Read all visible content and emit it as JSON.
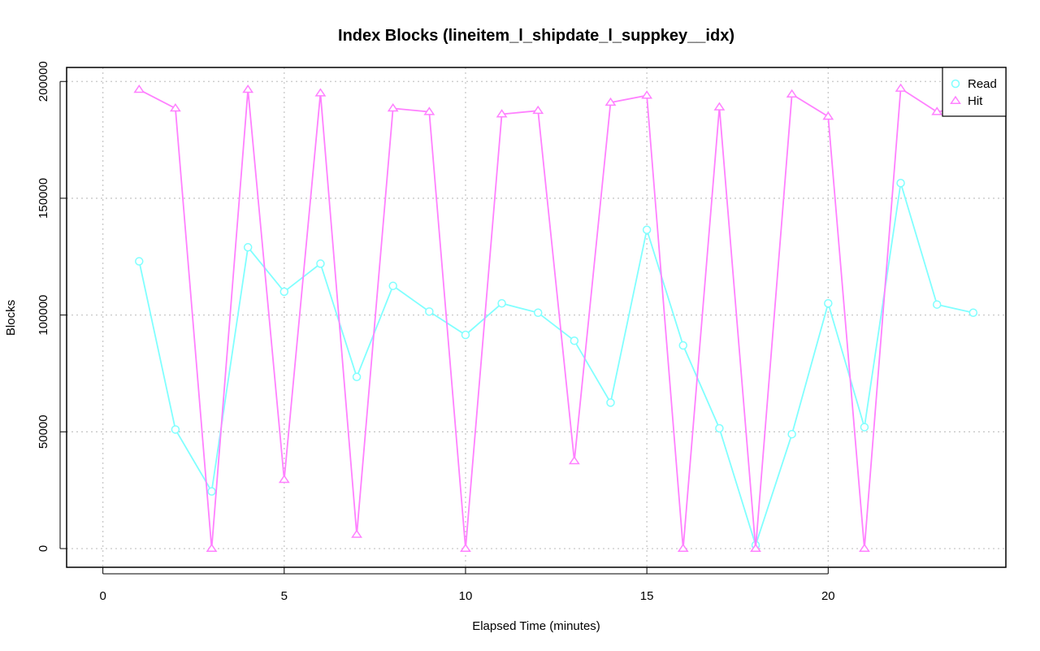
{
  "chart_data": {
    "type": "line",
    "title": "Index Blocks (lineitem_l_shipdate_l_suppkey__idx)",
    "xlabel": "Elapsed Time (minutes)",
    "ylabel": "Blocks",
    "xlim": [
      -1.0,
      24.9
    ],
    "ylim": [
      -8000,
      206000
    ],
    "xticks": [
      0,
      5,
      10,
      15,
      20
    ],
    "yticks": [
      0,
      50000,
      100000,
      150000,
      200000
    ],
    "grid": true,
    "legend_position": "top-right",
    "x": [
      1,
      2,
      3,
      4,
      5,
      6,
      7,
      8,
      9,
      10,
      11,
      12,
      13,
      14,
      15,
      16,
      17,
      18,
      19,
      20,
      21,
      22,
      23,
      24
    ],
    "series": [
      {
        "name": "Read",
        "color": "#80FFFF",
        "marker": "circle",
        "values": [
          123000,
          51000,
          24500,
          129000,
          110000,
          122000,
          73500,
          112500,
          101500,
          91500,
          105000,
          101000,
          89000,
          62500,
          136500,
          87000,
          51500,
          1500,
          49000,
          105000,
          52000,
          156500,
          104500,
          101000
        ]
      },
      {
        "name": "Hit",
        "color": "#FF80FF",
        "marker": "triangle",
        "values": [
          196500,
          188500,
          0,
          196500,
          29500,
          195000,
          6000,
          188500,
          187000,
          0,
          186000,
          187500,
          37500,
          191000,
          194000,
          0,
          189000,
          0,
          194500,
          185000,
          0,
          197000,
          187000,
          189500
        ]
      }
    ]
  }
}
